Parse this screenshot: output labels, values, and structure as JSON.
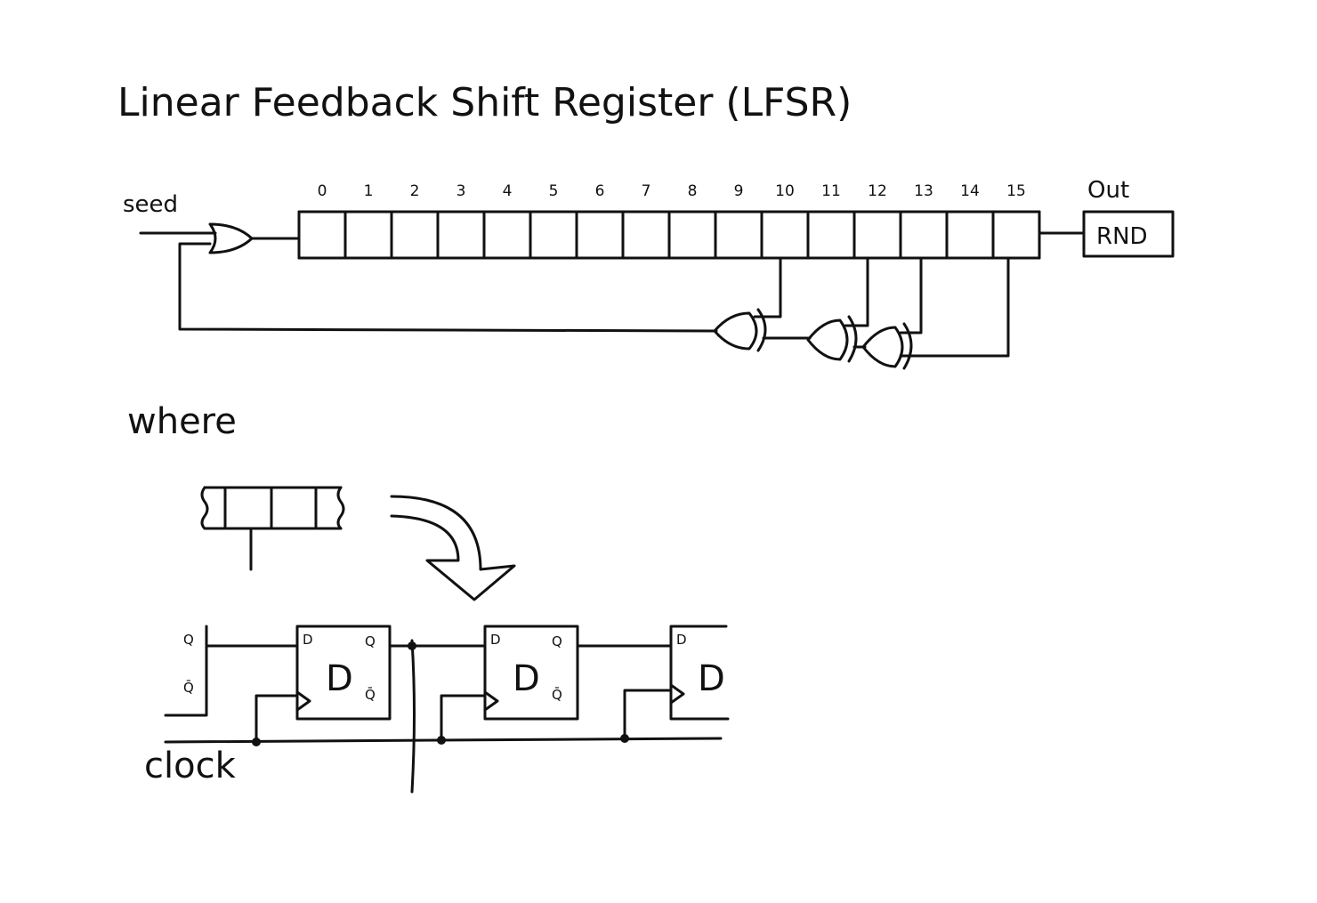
{
  "title": "Linear Feedback Shift Register (LFSR)",
  "seed_label": "seed",
  "out_label": "Out",
  "out_box_label": "RND",
  "register_indices": [
    "0",
    "1",
    "2",
    "3",
    "4",
    "5",
    "6",
    "7",
    "8",
    "9",
    "10",
    "11",
    "12",
    "13",
    "14",
    "15"
  ],
  "taps": [
    10,
    12,
    13,
    15
  ],
  "where_label": "where",
  "clock_label": "clock",
  "flipflop": {
    "input_label": "D",
    "output_label": "Q",
    "inverted_output_label": "Q̄",
    "symbol": "D"
  }
}
